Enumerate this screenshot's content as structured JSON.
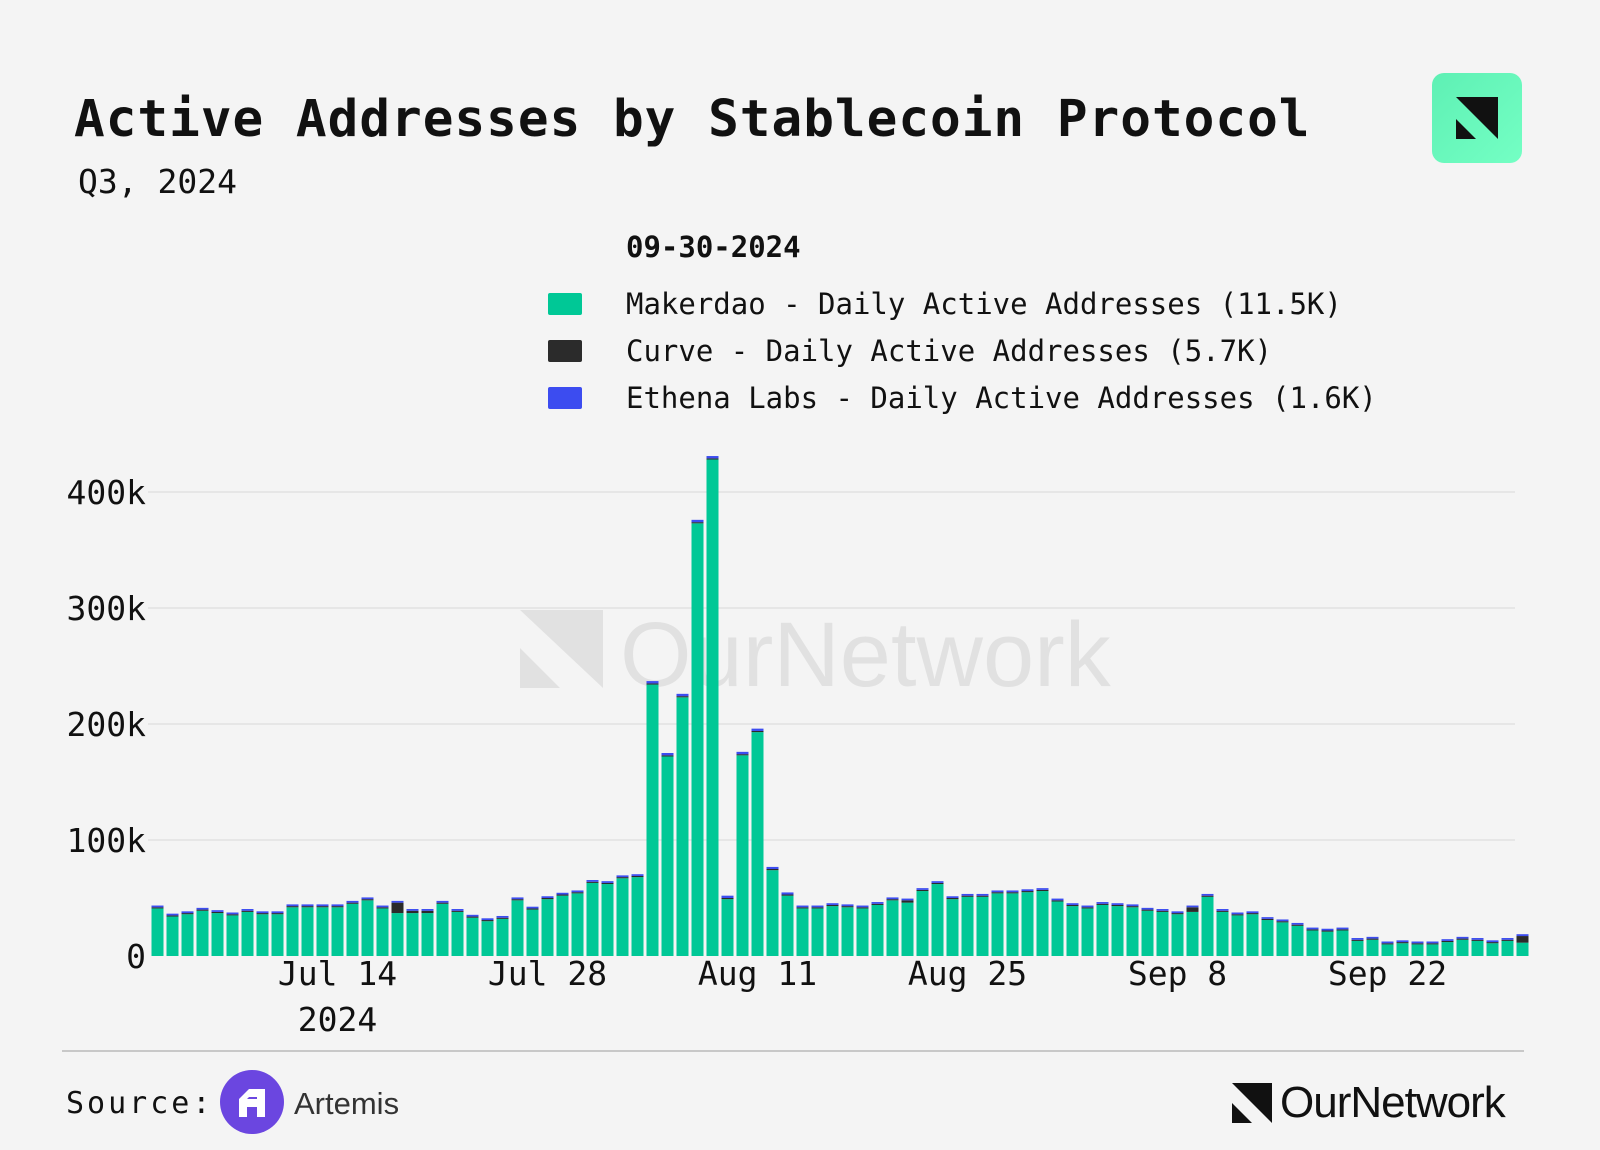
{
  "header": {
    "title": "Active Addresses by Stablecoin Protocol",
    "subtitle": "Q3, 2024"
  },
  "legend": {
    "date": "09-30-2024",
    "items": [
      {
        "label": "Makerdao - Daily Active Addresses (11.5K)",
        "color": "#00c896"
      },
      {
        "label": "Curve - Daily Active Addresses (5.7K)",
        "color": "#2b2b2b"
      },
      {
        "label": "Ethena Labs - Daily Active Addresses (1.6K)",
        "color": "#3c4cf0"
      }
    ]
  },
  "watermark": "OurNetwork",
  "footer": {
    "source_label": "Source:",
    "source_name": "Artemis",
    "brand": "OurNetwork"
  },
  "chart_data": {
    "type": "bar",
    "stacked": true,
    "x_start": "2024-07-02",
    "x_end": "2024-09-30",
    "x_ticks": [
      {
        "date": "2024-07-14",
        "label": "Jul 14",
        "sublabel": "2024"
      },
      {
        "date": "2024-07-28",
        "label": "Jul 28"
      },
      {
        "date": "2024-08-11",
        "label": "Aug 11"
      },
      {
        "date": "2024-08-25",
        "label": "Aug 25"
      },
      {
        "date": "2024-09-08",
        "label": "Sep 8"
      },
      {
        "date": "2024-09-22",
        "label": "Sep 22"
      }
    ],
    "ylim": [
      0,
      400000
    ],
    "yticks": [
      0,
      100000,
      200000,
      300000,
      400000
    ],
    "ytick_labels": [
      "0",
      "100k",
      "200k",
      "300k",
      "400k"
    ],
    "grid": true,
    "legend_position": "top",
    "series": [
      {
        "name": "Makerdao - Daily Active Addresses",
        "color": "#00c896",
        "values": [
          41000,
          34000,
          36000,
          39000,
          37000,
          35000,
          38000,
          36000,
          36000,
          42000,
          42000,
          42000,
          42000,
          45000,
          48000,
          41000,
          37000,
          37000,
          37000,
          45000,
          38000,
          33000,
          30000,
          32000,
          48000,
          40000,
          49000,
          52000,
          54000,
          63000,
          62000,
          67000,
          68000,
          234000,
          172000,
          223000,
          373000,
          428000,
          49000,
          173000,
          193000,
          74000,
          52000,
          41000,
          41000,
          43000,
          42000,
          41000,
          44000,
          48000,
          46000,
          56000,
          62000,
          49000,
          51000,
          51000,
          54000,
          54000,
          55000,
          56000,
          47000,
          43000,
          41000,
          44000,
          43000,
          42000,
          39000,
          38000,
          36000,
          38000,
          51000,
          38000,
          35000,
          36000,
          31000,
          29000,
          26000,
          22000,
          21000,
          22000,
          13000,
          14000,
          10000,
          11000,
          10000,
          10000,
          12000,
          14000,
          13000,
          11000,
          13000,
          11500
        ]
      },
      {
        "name": "Curve - Daily Active Addresses",
        "color": "#2b2b2b",
        "values": [
          1000,
          1000,
          1000,
          1000,
          1000,
          1000,
          1000,
          1000,
          1000,
          1000,
          1000,
          1000,
          1000,
          1000,
          1000,
          1000,
          9000,
          2000,
          2000,
          1000,
          1000,
          1000,
          1000,
          1000,
          1000,
          1000,
          1000,
          1000,
          1000,
          1000,
          1000,
          1000,
          1000,
          1000,
          1000,
          1000,
          1000,
          1000,
          1000,
          1000,
          1000,
          1000,
          1000,
          1000,
          1000,
          1000,
          1000,
          1000,
          1000,
          1000,
          2000,
          1000,
          1000,
          1000,
          1000,
          1000,
          1000,
          1000,
          1000,
          1000,
          1000,
          1000,
          1000,
          1000,
          1000,
          1000,
          1000,
          1000,
          1000,
          4000,
          1000,
          1000,
          1000,
          1000,
          1000,
          1000,
          1000,
          1000,
          1000,
          1000,
          1000,
          1000,
          1000,
          1000,
          1000,
          1000,
          1000,
          1000,
          1000,
          1000,
          1000,
          5700
        ]
      },
      {
        "name": "Ethena Labs - Daily Active Addresses",
        "color": "#3c4cf0",
        "values": [
          1500,
          1500,
          1500,
          1500,
          1500,
          1500,
          1500,
          1500,
          1500,
          1500,
          1500,
          1500,
          1500,
          1500,
          1500,
          1500,
          1500,
          1500,
          1500,
          1500,
          1500,
          1500,
          1500,
          1500,
          1500,
          1500,
          1500,
          1500,
          1500,
          1500,
          1500,
          1500,
          1500,
          2000,
          2000,
          2000,
          2000,
          2000,
          2000,
          2000,
          2000,
          1800,
          1800,
          1500,
          1500,
          1500,
          1500,
          1500,
          1500,
          1500,
          1500,
          1500,
          1500,
          1500,
          1500,
          1500,
          1500,
          1500,
          1500,
          1500,
          1500,
          1500,
          1500,
          1500,
          1500,
          1500,
          1500,
          1500,
          1500,
          1500,
          1500,
          1500,
          1500,
          1500,
          1500,
          1500,
          1500,
          1500,
          1500,
          1500,
          1500,
          1500,
          1500,
          1500,
          1500,
          1500,
          1500,
          1500,
          1500,
          1500,
          1500,
          1600
        ]
      }
    ]
  }
}
